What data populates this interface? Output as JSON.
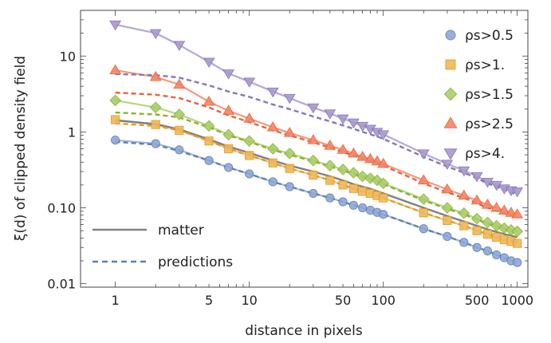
{
  "chart_data": {
    "type": "line",
    "xlabel": "distance in pixels",
    "ylabel": "ξ(d) of clipped density field",
    "xscale": "log",
    "yscale": "log",
    "xlim": [
      0.55,
      1200
    ],
    "ylim": [
      0.009,
      40
    ],
    "grid": false,
    "x_ticks": [
      {
        "v": 1,
        "label": "1"
      },
      {
        "v": 5,
        "label": "5"
      },
      {
        "v": 10,
        "label": "10"
      },
      {
        "v": 50,
        "label": "50"
      },
      {
        "v": 100,
        "label": "100"
      },
      {
        "v": 500,
        "label": "500"
      },
      {
        "v": 1000,
        "label": "1000"
      }
    ],
    "y_ticks": [
      {
        "v": 0.01,
        "label": "0.01"
      },
      {
        "v": 0.1,
        "label": "0.10"
      },
      {
        "v": 1,
        "label": "1"
      },
      {
        "v": 10,
        "label": "10"
      }
    ],
    "x": [
      1,
      2,
      3,
      5,
      7,
      10,
      15,
      20,
      30,
      40,
      50,
      60,
      70,
      80,
      90,
      100,
      200,
      300,
      400,
      500,
      600,
      700,
      800,
      900,
      1000
    ],
    "series": [
      {
        "name": "ρs>0.5",
        "marker": "circle",
        "color": "#8fa8d6",
        "stroke": "#5e81b5",
        "values": [
          0.78,
          0.7,
          0.58,
          0.42,
          0.34,
          0.28,
          0.22,
          0.19,
          0.155,
          0.135,
          0.12,
          0.108,
          0.1,
          0.093,
          0.087,
          0.082,
          0.053,
          0.042,
          0.035,
          0.03,
          0.027,
          0.024,
          0.022,
          0.02,
          0.019
        ]
      },
      {
        "name": "ρs>1.",
        "marker": "square",
        "color": "#f0b75a",
        "stroke": "#e19c24",
        "values": [
          1.45,
          1.25,
          1.05,
          0.76,
          0.6,
          0.49,
          0.39,
          0.33,
          0.27,
          0.23,
          0.2,
          0.18,
          0.165,
          0.155,
          0.145,
          0.135,
          0.086,
          0.068,
          0.058,
          0.05,
          0.045,
          0.041,
          0.038,
          0.036,
          0.034
        ]
      },
      {
        "name": "ρs>1.5",
        "marker": "diamond",
        "color": "#a8d06a",
        "stroke": "#8fb032",
        "values": [
          2.6,
          2.1,
          1.7,
          1.2,
          0.92,
          0.76,
          0.6,
          0.52,
          0.42,
          0.36,
          0.32,
          0.29,
          0.26,
          0.245,
          0.23,
          0.21,
          0.13,
          0.1,
          0.085,
          0.072,
          0.064,
          0.058,
          0.054,
          0.051,
          0.049
        ]
      },
      {
        "name": "ρs>2.5",
        "marker": "triangle-up",
        "color": "#f2866a",
        "stroke": "#eb6235",
        "values": [
          6.5,
          5.3,
          4.2,
          2.5,
          1.9,
          1.5,
          1.15,
          0.97,
          0.78,
          0.66,
          0.58,
          0.52,
          0.47,
          0.44,
          0.41,
          0.38,
          0.23,
          0.175,
          0.145,
          0.125,
          0.11,
          0.1,
          0.092,
          0.086,
          0.082
        ]
      },
      {
        "name": "ρs>4.",
        "marker": "triangle-down",
        "color": "#a999cf",
        "stroke": "#8778b3",
        "values": [
          26,
          20,
          14,
          8.4,
          5.9,
          4.6,
          3.4,
          2.8,
          2.1,
          1.75,
          1.5,
          1.33,
          1.2,
          1.1,
          1.0,
          0.93,
          0.52,
          0.38,
          0.31,
          0.26,
          0.22,
          0.2,
          0.18,
          0.17,
          0.165
        ]
      }
    ],
    "reference_lines": [
      {
        "name": "matter",
        "style": "solid",
        "color": "#808080",
        "values": [
          1.42,
          1.27,
          1.08,
          0.8,
          0.64,
          0.53,
          0.42,
          0.36,
          0.3,
          0.26,
          0.23,
          0.205,
          0.19,
          0.178,
          0.165,
          0.155,
          0.1,
          0.078,
          0.066,
          0.058,
          0.052,
          0.048,
          0.045,
          0.043,
          0.041
        ]
      },
      {
        "name": "predictions",
        "style": "dashed",
        "series_dashes": [
          {
            "color": "#5e81b5",
            "values": [
              0.74,
              0.68,
              0.56,
              0.42,
              0.34,
              0.28,
              0.22,
              0.19,
              0.155,
              0.135,
              0.12,
              0.108,
              0.1,
              0.093,
              0.087,
              0.082,
              0.053,
              0.042,
              0.035,
              0.03,
              0.027,
              0.024,
              0.022,
              0.02,
              0.019
            ]
          },
          {
            "color": "#e19c24",
            "values": [
              1.3,
              1.2,
              1.05,
              0.76,
              0.6,
              0.49,
              0.39,
              0.33,
              0.27,
              0.23,
              0.2,
              0.18,
              0.165,
              0.155,
              0.145,
              0.135,
              0.086,
              0.068,
              0.058,
              0.05,
              0.045,
              0.041,
              0.038,
              0.036,
              0.034
            ]
          },
          {
            "color": "#8fb032",
            "values": [
              1.8,
              1.7,
              1.55,
              1.15,
              0.9,
              0.74,
              0.58,
              0.5,
              0.41,
              0.35,
              0.31,
              0.28,
              0.255,
              0.24,
              0.225,
              0.205,
              0.125,
              0.097,
              0.082,
              0.07,
              0.062,
              0.056,
              0.052,
              0.049,
              0.047
            ]
          },
          {
            "color": "#eb6235",
            "values": [
              3.3,
              3.1,
              2.8,
              2.1,
              1.65,
              1.35,
              1.05,
              0.9,
              0.73,
              0.62,
              0.54,
              0.49,
              0.44,
              0.41,
              0.385,
              0.36,
              0.21,
              0.16,
              0.135,
              0.115,
              0.1,
              0.092,
              0.085,
              0.08,
              0.076
            ]
          },
          {
            "color": "#8778b3",
            "values": [
              5.8,
              5.6,
              5.2,
              4.1,
              3.4,
              2.9,
              2.3,
              2.0,
              1.6,
              1.38,
              1.22,
              1.1,
              1.0,
              0.93,
              0.87,
              0.81,
              0.47,
              0.35,
              0.29,
              0.245,
              0.21,
              0.19,
              0.172,
              0.16,
              0.15
            ]
          }
        ]
      }
    ],
    "legend_position": "top-right"
  }
}
